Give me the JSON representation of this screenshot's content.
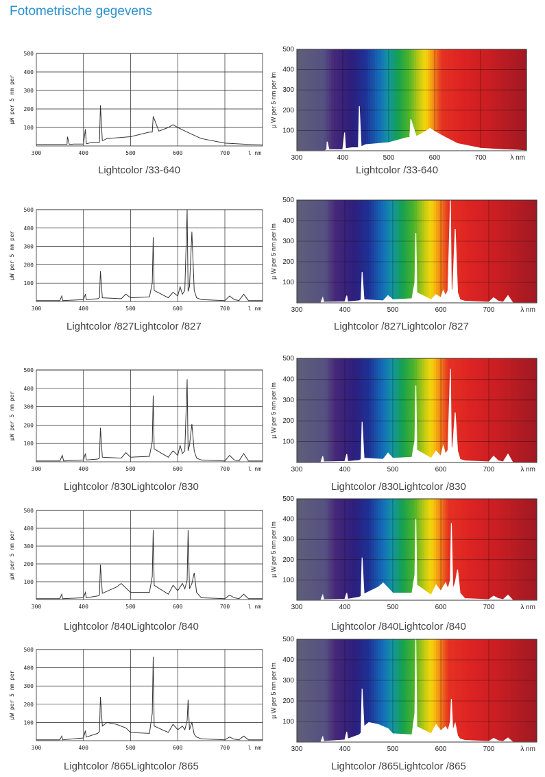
{
  "page": {
    "title": "Fotometrische gegevens"
  },
  "colors": {
    "title": "#2a8fd0"
  },
  "left_axis": {
    "ylabel": "µW per 5 nm per",
    "xunit": "l nm",
    "xticks": [
      "300",
      "400",
      "500",
      "600",
      "700"
    ],
    "yticks": [
      "100",
      "200",
      "300",
      "400",
      "500"
    ]
  },
  "right_axis": {
    "ylabel": "µ W per 5 nm per lm",
    "xunit": "λ nm",
    "xticks": [
      "300",
      "400",
      "500",
      "600",
      "700"
    ],
    "yticks": [
      "100",
      "200",
      "300",
      "400",
      "500"
    ]
  },
  "chart_data": [
    {
      "type": "line",
      "style": "plain",
      "lamp": "Lightcolor /33-640",
      "title": "Lightcolor /33-640",
      "xlabel": "l nm",
      "ylabel": "µW per 5 nm per",
      "xlim": [
        300,
        780
      ],
      "ylim": [
        0,
        500
      ],
      "grid": true,
      "series": [
        {
          "x": [
            300,
            350,
            365,
            366,
            370,
            380,
            400,
            404,
            406,
            420,
            434,
            436,
            440,
            450,
            500,
            540,
            546,
            548,
            560,
            580,
            590,
            600,
            620,
            650,
            700,
            750,
            780
          ],
          "y": [
            8,
            8,
            8,
            50,
            8,
            10,
            10,
            90,
            12,
            20,
            20,
            220,
            28,
            40,
            50,
            75,
            75,
            160,
            80,
            100,
            115,
            100,
            75,
            40,
            15,
            8,
            5
          ]
        }
      ]
    },
    {
      "type": "line",
      "style": "spectrum",
      "lamp": "Lightcolor /33-640",
      "title": "Lightcolor /33-640",
      "xlabel": "λ nm",
      "ylabel": "µ W per 5 nm per lm",
      "xlim": [
        300,
        800
      ],
      "ylim": [
        0,
        500
      ],
      "grid": true,
      "series": [
        {
          "x": [
            300,
            360,
            365,
            366,
            370,
            400,
            404,
            406,
            420,
            434,
            436,
            440,
            450,
            500,
            540,
            546,
            548,
            560,
            580,
            590,
            600,
            620,
            650,
            700,
            750,
            780,
            800
          ],
          "y": [
            0,
            0,
            5,
            45,
            5,
            5,
            90,
            10,
            15,
            15,
            220,
            20,
            30,
            40,
            65,
            65,
            155,
            70,
            95,
            110,
            95,
            70,
            35,
            12,
            5,
            3,
            0
          ]
        }
      ]
    },
    {
      "type": "line",
      "style": "plain",
      "lamp": "Lightcolor /827",
      "title": "Lightcolor /827Lightcolor /827",
      "xlabel": "l nm",
      "ylabel": "µW per 5 nm per",
      "xlim": [
        300,
        780
      ],
      "ylim": [
        0,
        500
      ],
      "grid": true,
      "series": [
        {
          "x": [
            300,
            350,
            354,
            356,
            400,
            404,
            406,
            430,
            434,
            436,
            440,
            480,
            490,
            500,
            540,
            546,
            548,
            550,
            580,
            590,
            600,
            605,
            610,
            615,
            620,
            622,
            625,
            630,
            635,
            640,
            650,
            700,
            710,
            720,
            730,
            740,
            750,
            780
          ],
          "y": [
            5,
            5,
            30,
            5,
            10,
            40,
            10,
            15,
            20,
            165,
            20,
            15,
            40,
            20,
            25,
            100,
            350,
            60,
            20,
            50,
            30,
            80,
            40,
            60,
            500,
            55,
            80,
            380,
            60,
            20,
            10,
            5,
            30,
            10,
            5,
            40,
            5,
            5
          ]
        }
      ]
    },
    {
      "type": "line",
      "style": "spectrum",
      "lamp": "Lightcolor /827",
      "title": "Lightcolor /827Lightcolor /827",
      "xlabel": "λ nm",
      "ylabel": "µ W per 5 nm per lm",
      "xlim": [
        300,
        800
      ],
      "ylim": [
        0,
        500
      ],
      "grid": true,
      "series": [
        {
          "x": [
            300,
            350,
            354,
            356,
            400,
            404,
            406,
            430,
            434,
            436,
            440,
            480,
            490,
            500,
            540,
            546,
            548,
            550,
            580,
            590,
            600,
            605,
            610,
            615,
            620,
            622,
            625,
            630,
            635,
            640,
            650,
            700,
            710,
            720,
            730,
            740,
            750,
            800
          ],
          "y": [
            0,
            0,
            25,
            3,
            5,
            35,
            5,
            10,
            15,
            150,
            15,
            10,
            35,
            15,
            20,
            100,
            340,
            50,
            15,
            40,
            25,
            60,
            35,
            60,
            500,
            50,
            70,
            360,
            50,
            15,
            8,
            3,
            25,
            8,
            3,
            35,
            0,
            0
          ]
        }
      ]
    },
    {
      "type": "line",
      "style": "plain",
      "lamp": "Lightcolor /830",
      "title": "Lightcolor /830Lightcolor /830",
      "xlabel": "l nm",
      "ylabel": "µW per 5 nm per",
      "xlim": [
        300,
        780
      ],
      "ylim": [
        0,
        500
      ],
      "grid": true,
      "series": [
        {
          "x": [
            300,
            350,
            355,
            358,
            400,
            404,
            406,
            430,
            434,
            436,
            440,
            480,
            490,
            500,
            540,
            546,
            548,
            550,
            580,
            590,
            600,
            605,
            610,
            615,
            620,
            622,
            625,
            630,
            635,
            640,
            650,
            700,
            710,
            720,
            730,
            740,
            750,
            780
          ],
          "y": [
            5,
            5,
            35,
            5,
            10,
            45,
            10,
            15,
            20,
            185,
            25,
            20,
            50,
            25,
            30,
            110,
            360,
            70,
            25,
            60,
            35,
            90,
            45,
            60,
            450,
            60,
            90,
            205,
            60,
            20,
            10,
            5,
            35,
            10,
            5,
            45,
            5,
            5
          ]
        }
      ]
    },
    {
      "type": "line",
      "style": "spectrum",
      "lamp": "Lightcolor /830",
      "title": "Lightcolor /830Lightcolor /830",
      "xlabel": "λ nm",
      "ylabel": "µ W per 5 nm per lm",
      "xlim": [
        300,
        800
      ],
      "ylim": [
        0,
        500
      ],
      "grid": true,
      "series": [
        {
          "x": [
            300,
            350,
            354,
            356,
            400,
            404,
            406,
            430,
            434,
            436,
            440,
            480,
            490,
            500,
            540,
            546,
            548,
            550,
            580,
            590,
            600,
            605,
            610,
            615,
            620,
            622,
            625,
            630,
            635,
            640,
            650,
            700,
            710,
            720,
            730,
            740,
            750,
            800
          ],
          "y": [
            0,
            0,
            30,
            3,
            5,
            40,
            5,
            10,
            15,
            195,
            20,
            15,
            45,
            20,
            25,
            105,
            370,
            60,
            20,
            55,
            30,
            80,
            40,
            60,
            450,
            55,
            80,
            240,
            55,
            15,
            8,
            3,
            30,
            8,
            3,
            40,
            0,
            0
          ]
        }
      ]
    },
    {
      "type": "line",
      "style": "plain",
      "lamp": "Lightcolor /840",
      "title": "Lightcolor /840Lightcolor /840",
      "xlabel": "l nm",
      "ylabel": "µW per 5 nm per",
      "xlim": [
        300,
        780
      ],
      "ylim": [
        0,
        500
      ],
      "grid": true,
      "series": [
        {
          "x": [
            300,
            350,
            354,
            356,
            400,
            404,
            406,
            430,
            434,
            436,
            440,
            470,
            480,
            500,
            540,
            546,
            548,
            550,
            580,
            590,
            600,
            610,
            615,
            620,
            622,
            625,
            630,
            635,
            640,
            650,
            700,
            710,
            720,
            730,
            740,
            750,
            780
          ],
          "y": [
            5,
            5,
            30,
            5,
            10,
            40,
            10,
            20,
            25,
            195,
            35,
            70,
            90,
            40,
            40,
            130,
            390,
            80,
            30,
            80,
            50,
            90,
            60,
            110,
            390,
            60,
            90,
            150,
            40,
            10,
            5,
            25,
            10,
            5,
            30,
            5,
            5
          ]
        }
      ]
    },
    {
      "type": "line",
      "style": "spectrum",
      "lamp": "Lightcolor /840",
      "title": "Lightcolor /840Lightcolor /840",
      "xlabel": "λ nm",
      "ylabel": "µ W per 5 nm per lm",
      "xlim": [
        300,
        800
      ],
      "ylim": [
        0,
        500
      ],
      "grid": true,
      "series": [
        {
          "x": [
            300,
            350,
            354,
            356,
            400,
            404,
            406,
            430,
            434,
            436,
            440,
            470,
            480,
            500,
            540,
            546,
            548,
            550,
            580,
            590,
            600,
            610,
            615,
            620,
            622,
            625,
            630,
            635,
            640,
            650,
            700,
            710,
            720,
            730,
            740,
            750,
            800
          ],
          "y": [
            0,
            0,
            25,
            3,
            5,
            35,
            5,
            15,
            20,
            210,
            30,
            65,
            85,
            35,
            35,
            125,
            400,
            75,
            25,
            75,
            45,
            85,
            55,
            100,
            380,
            55,
            85,
            150,
            35,
            8,
            3,
            20,
            8,
            3,
            25,
            0,
            0
          ]
        }
      ]
    },
    {
      "type": "line",
      "style": "plain",
      "lamp": "Lightcolor /865",
      "title": "Lightcolor /865Lightcolor /865",
      "xlabel": "l nm",
      "ylabel": "µW per 5 nm per",
      "xlim": [
        300,
        780
      ],
      "ylim": [
        0,
        500
      ],
      "grid": true,
      "series": [
        {
          "x": [
            300,
            350,
            354,
            356,
            400,
            404,
            406,
            430,
            434,
            436,
            440,
            450,
            470,
            490,
            500,
            540,
            546,
            548,
            550,
            580,
            590,
            600,
            610,
            615,
            620,
            622,
            625,
            630,
            635,
            640,
            650,
            700,
            710,
            720,
            730,
            740,
            750,
            780
          ],
          "y": [
            5,
            5,
            25,
            5,
            15,
            55,
            20,
            40,
            50,
            240,
            80,
            100,
            90,
            70,
            45,
            40,
            150,
            460,
            80,
            45,
            90,
            60,
            80,
            60,
            110,
            225,
            60,
            100,
            35,
            20,
            10,
            5,
            20,
            8,
            5,
            25,
            5,
            5
          ]
        }
      ]
    },
    {
      "type": "line",
      "style": "spectrum",
      "lamp": "Lightcolor /865",
      "title": "Lightcolor /865Lightcolor /865",
      "xlabel": "λ nm",
      "ylabel": "µ W per 5 nm per lm",
      "xlim": [
        300,
        800
      ],
      "ylim": [
        0,
        500
      ],
      "grid": true,
      "series": [
        {
          "x": [
            300,
            350,
            354,
            356,
            400,
            404,
            406,
            430,
            434,
            436,
            440,
            450,
            470,
            490,
            500,
            540,
            546,
            548,
            550,
            580,
            590,
            600,
            610,
            615,
            620,
            622,
            625,
            630,
            635,
            640,
            650,
            700,
            710,
            720,
            730,
            740,
            750,
            800
          ],
          "y": [
            0,
            0,
            25,
            3,
            10,
            50,
            15,
            35,
            45,
            260,
            75,
            95,
            85,
            65,
            40,
            35,
            140,
            500,
            75,
            40,
            85,
            55,
            75,
            55,
            100,
            210,
            55,
            90,
            30,
            15,
            8,
            3,
            18,
            6,
            3,
            20,
            0,
            0
          ]
        }
      ]
    }
  ]
}
